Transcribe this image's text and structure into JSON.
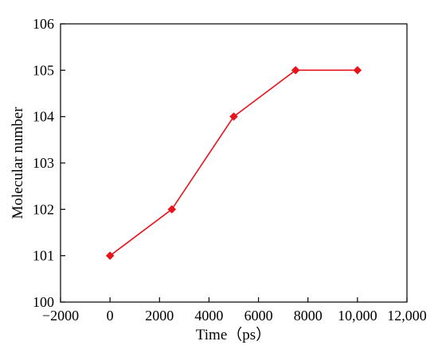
{
  "chart_data": {
    "type": "line",
    "xlabel": "Time（ps）",
    "ylabel": "Molecular number",
    "xlim": [
      -2000,
      12000
    ],
    "ylim": [
      100,
      106
    ],
    "x_ticks": [
      -2000,
      0,
      2000,
      4000,
      6000,
      8000,
      10000,
      12000
    ],
    "x_tick_labels": [
      "−2000",
      "0",
      "2000",
      "4000",
      "6000",
      "8000",
      "10,000",
      "12,000"
    ],
    "y_ticks": [
      100,
      101,
      102,
      103,
      104,
      105,
      106
    ],
    "y_tick_labels": [
      "100",
      "101",
      "102",
      "103",
      "104",
      "105",
      "106"
    ],
    "grid": false,
    "marker": "diamond",
    "series": [
      {
        "color": "#e8141b",
        "x": [
          0,
          2500,
          5000,
          7500,
          10000
        ],
        "y": [
          101,
          102,
          104,
          105,
          105
        ]
      }
    ]
  }
}
